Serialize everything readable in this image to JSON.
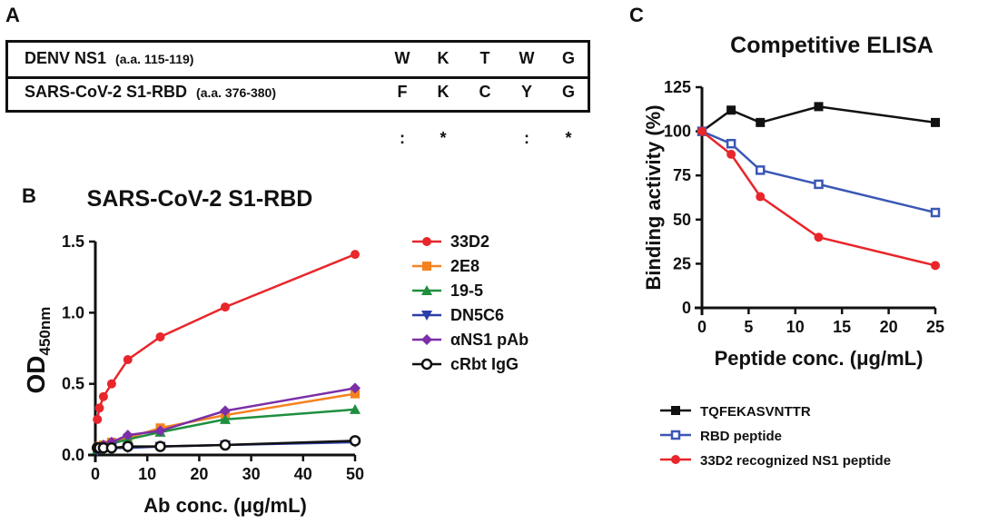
{
  "panels": {
    "a": "A",
    "b": "B",
    "c": "C"
  },
  "alignment": {
    "rows": [
      {
        "name": "DENV NS1",
        "range": "(a.a. 115-119)",
        "residues": [
          "W",
          "K",
          "T",
          "W",
          "G"
        ]
      },
      {
        "name": "SARS-CoV-2 S1-RBD",
        "range": "(a.a. 376-380)",
        "residues": [
          "F",
          "K",
          "C",
          "Y",
          "G"
        ]
      }
    ],
    "conservation": [
      ":",
      "*",
      "",
      ":",
      "*"
    ]
  },
  "chart_data": [
    {
      "type": "line",
      "title": "SARS-CoV-2 S1-RBD",
      "xlabel": "Ab conc. (μg/mL)",
      "ylabel": "OD",
      "ylabel_sub": "450nm",
      "xlim": [
        0,
        50
      ],
      "ylim": [
        0,
        1.5
      ],
      "xticks": [
        "0",
        "10",
        "20",
        "30",
        "40",
        "50"
      ],
      "yticks": [
        "0.0",
        "0.5",
        "1.0",
        "1.5"
      ],
      "x": [
        0.39,
        0.78,
        1.56,
        3.125,
        6.25,
        12.5,
        25,
        50
      ],
      "legend_position": "right",
      "series": [
        {
          "name": "33D2",
          "color": "#e8262b",
          "marker": "circle",
          "values": [
            0.25,
            0.33,
            0.41,
            0.5,
            0.67,
            0.83,
            1.04,
            1.41
          ]
        },
        {
          "name": "2E8",
          "color": "#f58220",
          "marker": "square",
          "values": [
            0.05,
            0.06,
            0.07,
            0.09,
            0.12,
            0.19,
            0.28,
            0.43
          ]
        },
        {
          "name": "19-5",
          "color": "#1e8f3e",
          "marker": "triangle",
          "values": [
            0.04,
            0.05,
            0.06,
            0.08,
            0.11,
            0.16,
            0.25,
            0.32
          ]
        },
        {
          "name": "DN5C6",
          "color": "#2b3fa8",
          "marker": "triangle-down",
          "values": [
            0.03,
            0.04,
            0.04,
            0.05,
            0.05,
            0.06,
            0.07,
            0.09
          ]
        },
        {
          "name": "αNS1 pAb",
          "color": "#7b2fa8",
          "marker": "diamond",
          "values": [
            0.04,
            0.05,
            0.07,
            0.09,
            0.14,
            0.17,
            0.31,
            0.47
          ]
        },
        {
          "name": "cRbt IgG",
          "color": "#111111",
          "marker": "open-circle",
          "values": [
            0.05,
            0.05,
            0.05,
            0.05,
            0.06,
            0.06,
            0.07,
            0.1
          ]
        }
      ]
    },
    {
      "type": "line",
      "title": "Competitive ELISA",
      "xlabel": "Peptide conc. (μg/mL)",
      "ylabel": "Binding activity (%)",
      "xlim": [
        0,
        25
      ],
      "ylim": [
        0,
        125
      ],
      "xticks": [
        "0",
        "5",
        "10",
        "15",
        "20",
        "25"
      ],
      "yticks": [
        "0",
        "25",
        "50",
        "75",
        "100",
        "125"
      ],
      "x": [
        0,
        3.125,
        6.25,
        12.5,
        25
      ],
      "legend_position": "bottom",
      "series": [
        {
          "name": "TQFEKASVNTTR",
          "color": "#111111",
          "marker": "square",
          "values": [
            100,
            112,
            105,
            114,
            105
          ]
        },
        {
          "name": "RBD peptide",
          "color": "#3a57b5",
          "marker": "open-square",
          "values": [
            100,
            93,
            78,
            70,
            54
          ]
        },
        {
          "name": "33D2 recognized NS1 peptide",
          "color": "#e8262b",
          "marker": "circle",
          "values": [
            100,
            87,
            63,
            40,
            24
          ]
        }
      ]
    }
  ]
}
